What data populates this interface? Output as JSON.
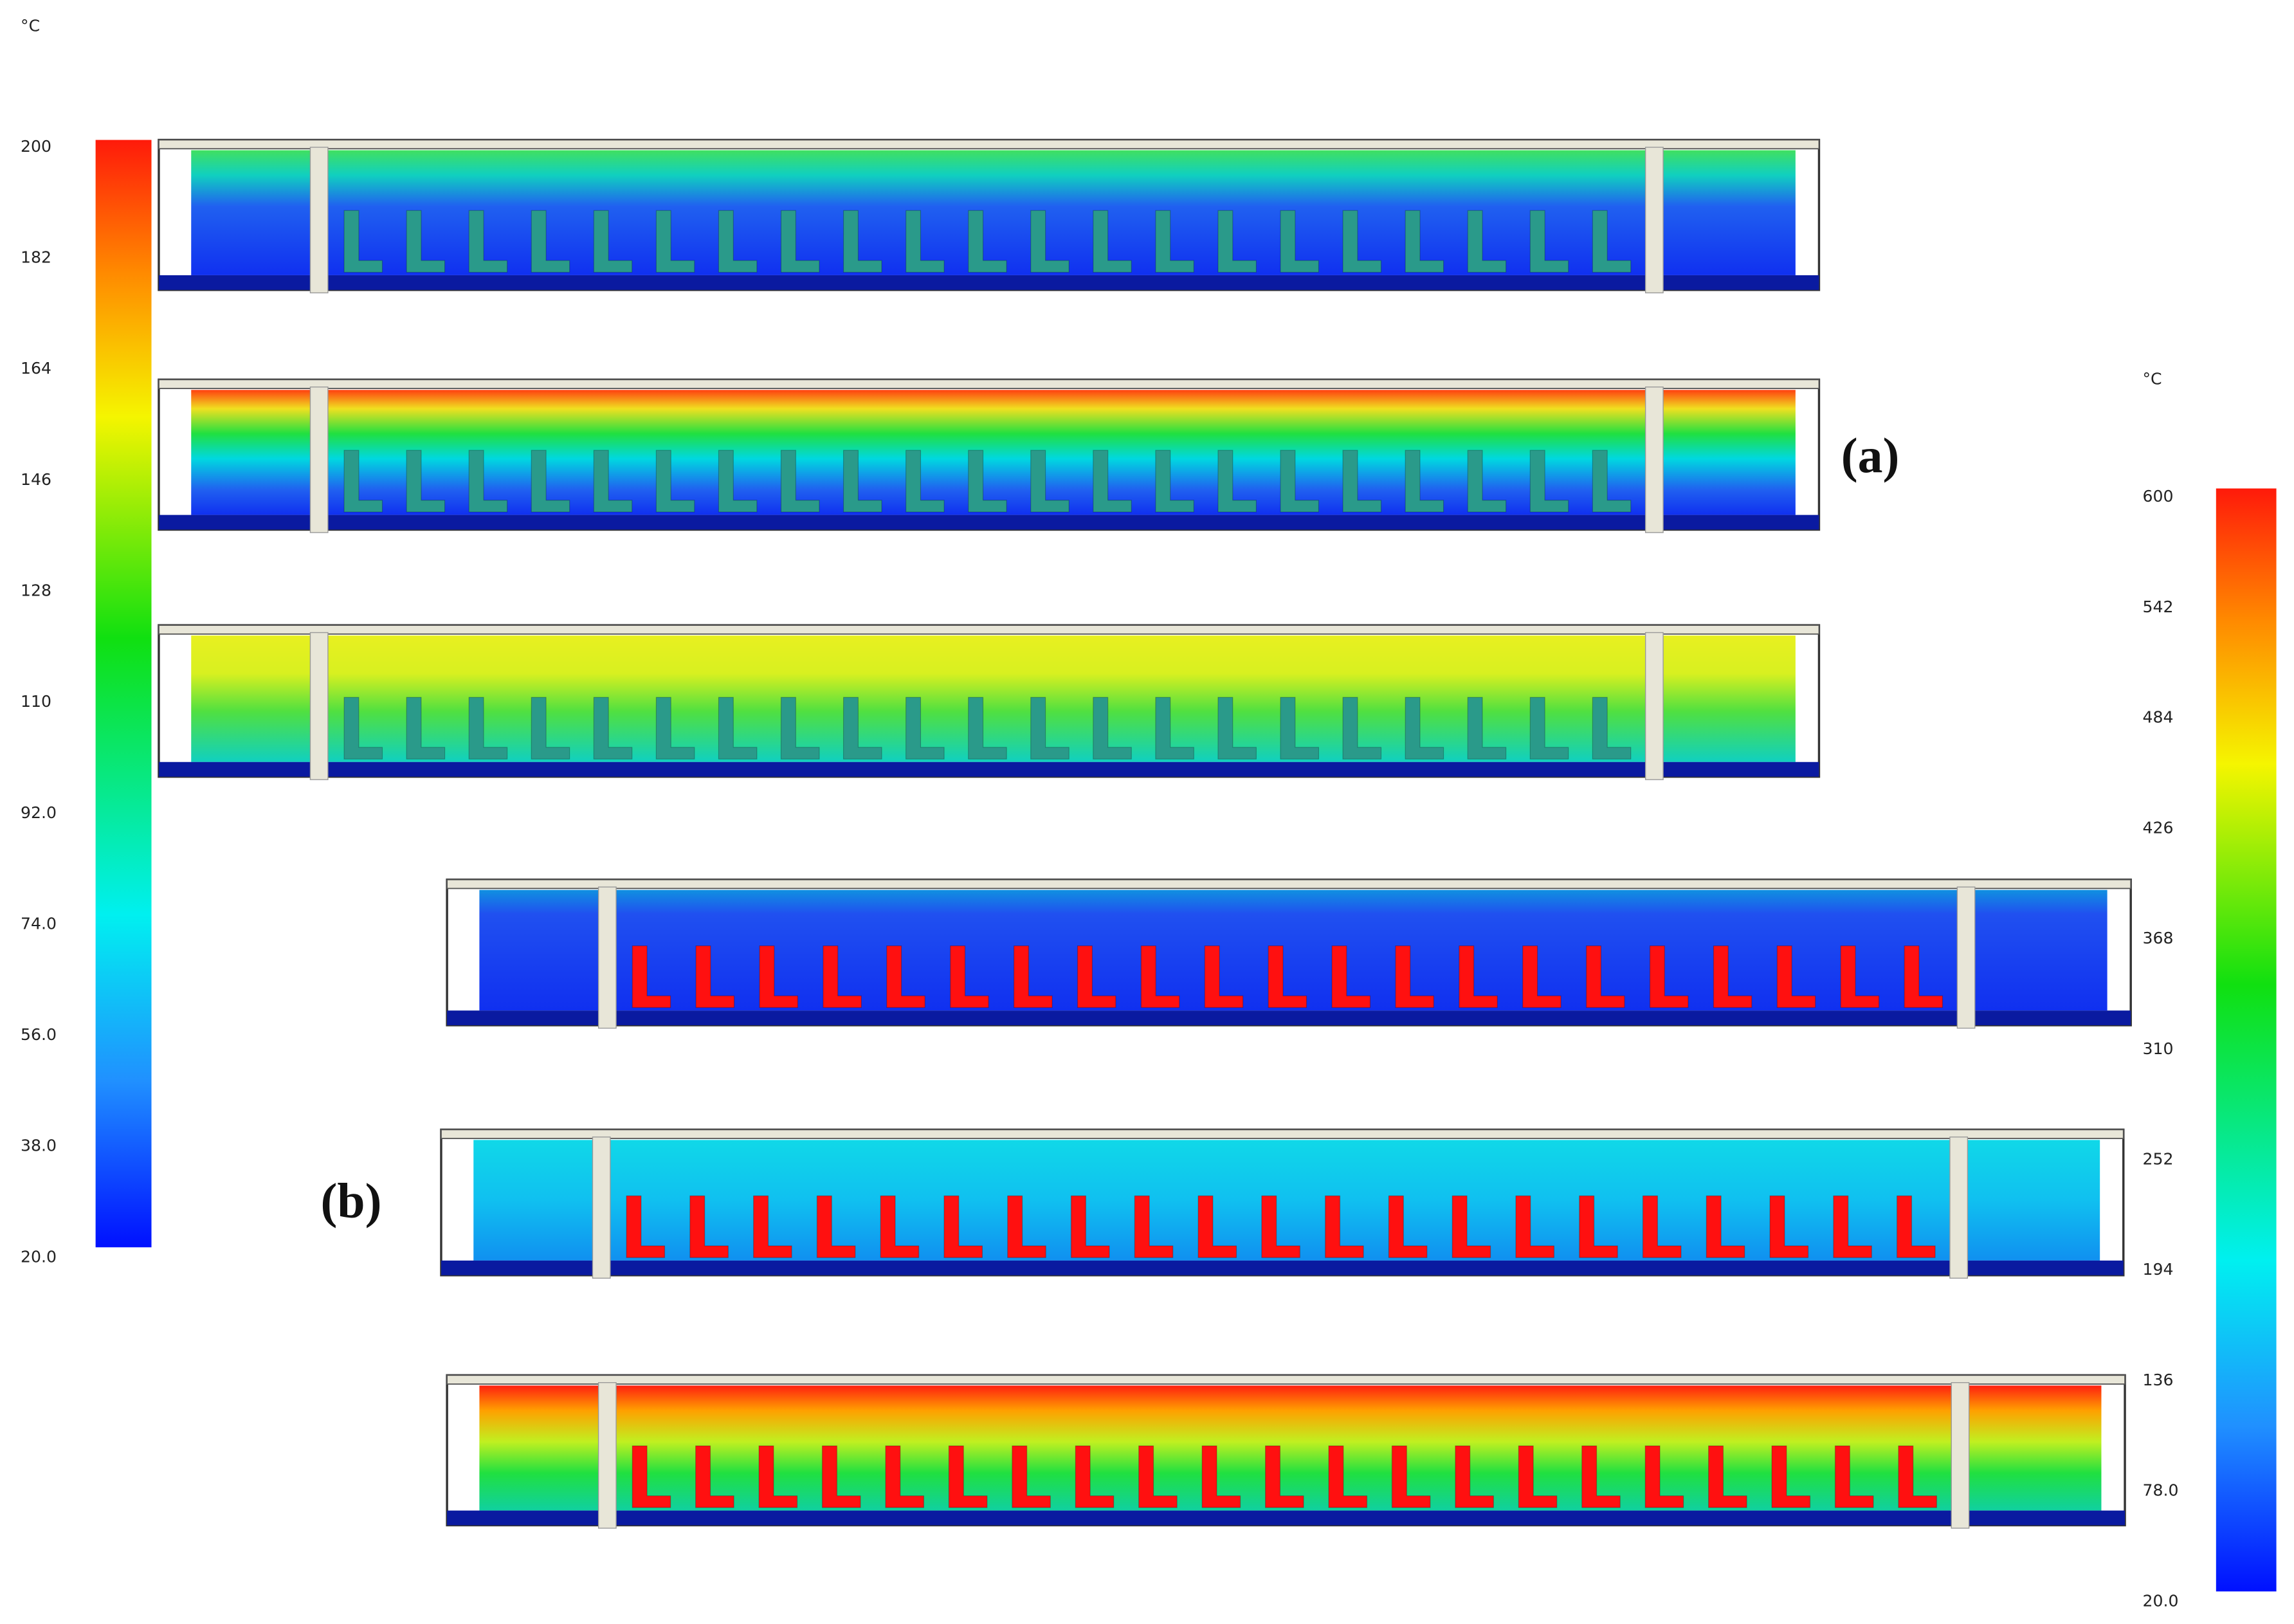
{
  "figure": {
    "label_a": "(a)",
    "label_b": "(b)",
    "colorbar_a": {
      "unit": "°C",
      "ticks": [
        "200",
        "182",
        "164",
        "146",
        "128",
        "110",
        "92.0",
        "74.0",
        "56.0",
        "38.0",
        "20.0"
      ]
    },
    "colorbar_b": {
      "unit": "°C",
      "ticks": [
        "600",
        "542",
        "484",
        "426",
        "368",
        "310",
        "252",
        "194",
        "136",
        "78.0",
        "20.0"
      ]
    }
  }
}
